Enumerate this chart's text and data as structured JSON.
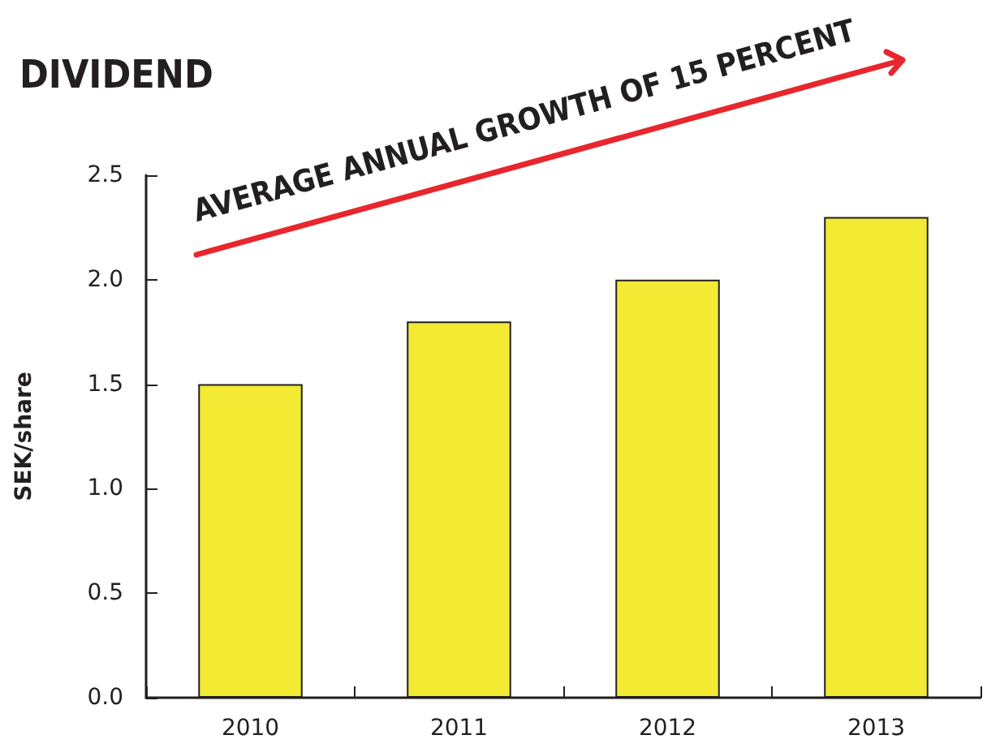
{
  "chart_data": {
    "type": "bar",
    "title": "DIVIDEND",
    "ylabel": "SEK/share",
    "categories": [
      "2010",
      "2011",
      "2012",
      "2013"
    ],
    "values": [
      1.5,
      1.8,
      2.0,
      2.3
    ],
    "color": "#f2ea33",
    "ylim": [
      0,
      2.5
    ],
    "yticks": [
      {
        "value": 0,
        "label": "0.0"
      },
      {
        "value": 0.5,
        "label": "0.5"
      },
      {
        "value": 1,
        "label": "1.0"
      },
      {
        "value": 1.5,
        "label": "1.5"
      },
      {
        "value": 2,
        "label": "2.0"
      },
      {
        "value": 2.5,
        "label": "2.5"
      }
    ],
    "annotations": [
      "AVERAGE ANNUAL GROWTH OF 15 PERCENT"
    ]
  }
}
